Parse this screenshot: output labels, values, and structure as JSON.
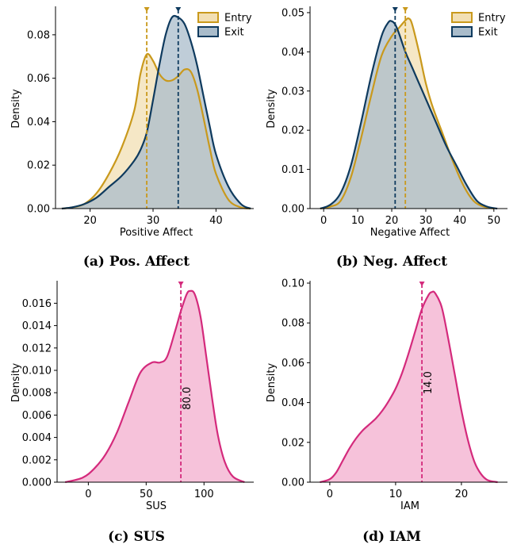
{
  "chart_data": [
    {
      "id": "a",
      "type": "area",
      "caption": "(a) Pos. Affect",
      "xlabel": "Positive Affect",
      "ylabel": "Density",
      "xlim": [
        14.5,
        46
      ],
      "ylim": [
        0,
        0.092
      ],
      "xticks": [
        20,
        30,
        40
      ],
      "yticks": [
        0.0,
        0.02,
        0.04,
        0.06,
        0.08
      ],
      "ytick_fmt": 2,
      "legend_position": "top-right",
      "series": [
        {
          "name": "Entry",
          "color": "#c9991c",
          "fill": "#f2dfb3",
          "mean": 29.0,
          "points": [
            [
              15.5,
              0.0
            ],
            [
              17,
              0.0005
            ],
            [
              19,
              0.002
            ],
            [
              21,
              0.007
            ],
            [
              23,
              0.016
            ],
            [
              25,
              0.028
            ],
            [
              27,
              0.045
            ],
            [
              28,
              0.062
            ],
            [
              29,
              0.071
            ],
            [
              30,
              0.068
            ],
            [
              31,
              0.062
            ],
            [
              32,
              0.059
            ],
            [
              33,
              0.059
            ],
            [
              34,
              0.061
            ],
            [
              35,
              0.064
            ],
            [
              36,
              0.063
            ],
            [
              37,
              0.055
            ],
            [
              38,
              0.042
            ],
            [
              39,
              0.028
            ],
            [
              40,
              0.016
            ],
            [
              42,
              0.004
            ],
            [
              44,
              0.0005
            ],
            [
              45.5,
              0.0
            ]
          ]
        },
        {
          "name": "Exit",
          "color": "#0e3a5e",
          "fill": "#a9bccb",
          "mean": 34.0,
          "points": [
            [
              15.5,
              0.0
            ],
            [
              17,
              0.0005
            ],
            [
              19,
              0.002
            ],
            [
              21,
              0.005
            ],
            [
              23,
              0.01
            ],
            [
              25,
              0.015
            ],
            [
              27,
              0.022
            ],
            [
              28,
              0.027
            ],
            [
              29,
              0.035
            ],
            [
              30,
              0.05
            ],
            [
              31,
              0.066
            ],
            [
              32,
              0.08
            ],
            [
              33,
              0.088
            ],
            [
              34,
              0.088
            ],
            [
              35,
              0.085
            ],
            [
              36,
              0.077
            ],
            [
              37,
              0.066
            ],
            [
              38,
              0.052
            ],
            [
              39,
              0.038
            ],
            [
              40,
              0.025
            ],
            [
              42,
              0.01
            ],
            [
              44,
              0.002
            ],
            [
              45.5,
              0.0
            ]
          ]
        }
      ]
    },
    {
      "id": "b",
      "type": "area",
      "caption": "(b) Neg. Affect",
      "xlabel": "Negative Affect",
      "ylabel": "Density",
      "xlim": [
        -4,
        54
      ],
      "ylim": [
        0,
        0.051
      ],
      "xticks": [
        0,
        10,
        20,
        30,
        40,
        50
      ],
      "yticks": [
        0.0,
        0.01,
        0.02,
        0.03,
        0.04,
        0.05
      ],
      "ytick_fmt": 2,
      "legend_position": "top-right",
      "series": [
        {
          "name": "Entry",
          "color": "#c9991c",
          "fill": "#f2dfb3",
          "mean": 24.0,
          "points": [
            [
              -1,
              0.0
            ],
            [
              2,
              0.0005
            ],
            [
              5,
              0.002
            ],
            [
              8,
              0.008
            ],
            [
              11,
              0.018
            ],
            [
              14,
              0.029
            ],
            [
              17,
              0.039
            ],
            [
              20,
              0.044
            ],
            [
              22,
              0.046
            ],
            [
              24,
              0.048
            ],
            [
              25,
              0.0485
            ],
            [
              26,
              0.047
            ],
            [
              28,
              0.04
            ],
            [
              30,
              0.032
            ],
            [
              32,
              0.026
            ],
            [
              35,
              0.019
            ],
            [
              38,
              0.012
            ],
            [
              41,
              0.006
            ],
            [
              44,
              0.002
            ],
            [
              47,
              0.0005
            ],
            [
              50,
              0.0
            ]
          ]
        },
        {
          "name": "Exit",
          "color": "#0e3a5e",
          "fill": "#a9bccb",
          "mean": 21.0,
          "points": [
            [
              -1,
              0.0
            ],
            [
              2,
              0.001
            ],
            [
              5,
              0.004
            ],
            [
              8,
              0.011
            ],
            [
              11,
              0.022
            ],
            [
              14,
              0.034
            ],
            [
              17,
              0.044
            ],
            [
              19,
              0.0475
            ],
            [
              20,
              0.0478
            ],
            [
              21,
              0.047
            ],
            [
              22,
              0.045
            ],
            [
              24,
              0.04
            ],
            [
              26,
              0.036
            ],
            [
              28,
              0.032
            ],
            [
              30,
              0.028
            ],
            [
              33,
              0.022
            ],
            [
              36,
              0.016
            ],
            [
              39,
              0.011
            ],
            [
              42,
              0.006
            ],
            [
              45,
              0.002
            ],
            [
              48,
              0.0005
            ],
            [
              51,
              0.0
            ]
          ]
        }
      ]
    },
    {
      "id": "c",
      "type": "area",
      "caption": "(c) SUS",
      "xlabel": "SUS",
      "ylabel": "Density",
      "xlim": [
        -27,
        143
      ],
      "ylim": [
        0,
        0.0178
      ],
      "xticks": [
        0,
        50,
        100
      ],
      "yticks": [
        0.0,
        0.002,
        0.004,
        0.006,
        0.008,
        0.01,
        0.012,
        0.014,
        0.016
      ],
      "ytick_fmt": 3,
      "series": [
        {
          "name": "",
          "color": "#d42a7c",
          "fill": "#f5bfd8",
          "mean": 80.0,
          "mean_label": "80.0",
          "points": [
            [
              -20,
              0.0
            ],
            [
              -5,
              0.0004
            ],
            [
              5,
              0.0012
            ],
            [
              15,
              0.0025
            ],
            [
              25,
              0.0045
            ],
            [
              35,
              0.0072
            ],
            [
              45,
              0.0098
            ],
            [
              55,
              0.0107
            ],
            [
              62,
              0.0107
            ],
            [
              68,
              0.0112
            ],
            [
              75,
              0.0135
            ],
            [
              80,
              0.0153
            ],
            [
              85,
              0.0168
            ],
            [
              88,
              0.0171
            ],
            [
              92,
              0.0168
            ],
            [
              97,
              0.0148
            ],
            [
              102,
              0.0112
            ],
            [
              107,
              0.0075
            ],
            [
              112,
              0.0042
            ],
            [
              118,
              0.0018
            ],
            [
              125,
              0.0005
            ],
            [
              135,
              0.0
            ]
          ]
        }
      ]
    },
    {
      "id": "d",
      "type": "area",
      "caption": "(d) IAM",
      "xlabel": "IAM",
      "ylabel": "Density",
      "xlim": [
        -3,
        27
      ],
      "ylim": [
        0,
        0.1
      ],
      "xticks": [
        0,
        10,
        20
      ],
      "yticks": [
        0.0,
        0.02,
        0.04,
        0.06,
        0.08,
        0.1
      ],
      "ytick_fmt": 2,
      "series": [
        {
          "name": "",
          "color": "#d42a7c",
          "fill": "#f5bfd8",
          "mean": 14.0,
          "mean_label": "14.0",
          "points": [
            [
              -1.5,
              0.0
            ],
            [
              0,
              0.0015
            ],
            [
              1,
              0.005
            ],
            [
              2,
              0.011
            ],
            [
              3,
              0.017
            ],
            [
              4,
              0.022
            ],
            [
              5,
              0.026
            ],
            [
              6,
              0.029
            ],
            [
              7,
              0.032
            ],
            [
              8,
              0.036
            ],
            [
              9,
              0.041
            ],
            [
              10,
              0.047
            ],
            [
              11,
              0.055
            ],
            [
              12,
              0.065
            ],
            [
              13,
              0.076
            ],
            [
              14,
              0.087
            ],
            [
              15,
              0.094
            ],
            [
              15.5,
              0.0955
            ],
            [
              16,
              0.095
            ],
            [
              17,
              0.088
            ],
            [
              18,
              0.072
            ],
            [
              19,
              0.054
            ],
            [
              20,
              0.036
            ],
            [
              21,
              0.021
            ],
            [
              22,
              0.01
            ],
            [
              23,
              0.004
            ],
            [
              24,
              0.001
            ],
            [
              25.5,
              0.0
            ]
          ]
        }
      ]
    }
  ]
}
